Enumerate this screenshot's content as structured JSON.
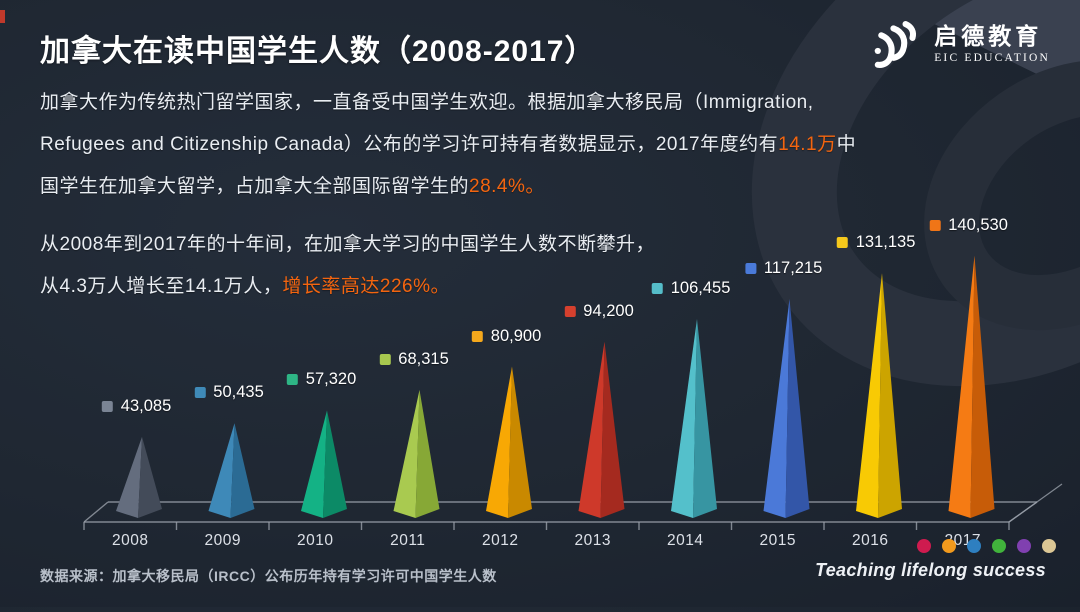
{
  "header": {
    "title": "加拿大在读中国学生人数（2008-2017）",
    "logo": {
      "cn": "启德教育",
      "en": "EIC EDUCATION"
    }
  },
  "intro": {
    "p1": [
      {
        "t": "加拿大作为传统热门留学国家，一直备受中国学生欢迎。根据加拿大移民局（Immigration,"
      },
      {
        "br": true
      },
      {
        "t": "Refugees and Citizenship Canada）公布的学习许可持有者数据显示，2017年度约有"
      },
      {
        "t": "14.1万",
        "hl": true
      },
      {
        "t": "中"
      },
      {
        "br": true
      },
      {
        "t": "国学生在加拿大留学，占加拿大全部国际留学生的"
      },
      {
        "t": "28.4%。",
        "hl": true
      }
    ],
    "p2": [
      {
        "t": "从2008年到2017年的十年间，在加拿大学习的中国学生人数不断攀升，"
      },
      {
        "br": true
      },
      {
        "t": "从4.3万人增长至14.1万人，"
      },
      {
        "t": "增长率高达226%。",
        "hl": true
      }
    ]
  },
  "chart_data": {
    "type": "bar",
    "subtype": "3d-cone",
    "title": "加拿大在读中国学生人数（2008-2017）",
    "xlabel": "",
    "ylabel": "",
    "grid": false,
    "legend_position": "none",
    "categories": [
      "2008",
      "2009",
      "2010",
      "2011",
      "2012",
      "2013",
      "2014",
      "2015",
      "2016",
      "2017"
    ],
    "values": [
      43085,
      50435,
      57320,
      68315,
      80900,
      94200,
      106455,
      117215,
      131135,
      140530
    ],
    "value_labels": [
      "43,085",
      "50,435",
      "57,320",
      "68,315",
      "80,900",
      "94,200",
      "106,455",
      "117,215",
      "131,135",
      "140,530"
    ],
    "colors": [
      {
        "light": "#646d7e",
        "dark": "#434b59",
        "marker": "#7a8494"
      },
      {
        "light": "#3e89b8",
        "dark": "#2b6b94",
        "marker": "#3f8ab8"
      },
      {
        "light": "#14b285",
        "dark": "#0c8a66",
        "marker": "#2eb585"
      },
      {
        "light": "#a9ca50",
        "dark": "#87a836",
        "marker": "#a8c84f"
      },
      {
        "light": "#f8a804",
        "dark": "#c98900",
        "marker": "#f5a81c"
      },
      {
        "light": "#ce392a",
        "dark": "#a52a1f",
        "marker": "#d6402e"
      },
      {
        "light": "#54c0cb",
        "dark": "#3795a2",
        "marker": "#55bdc9"
      },
      {
        "light": "#4b79d8",
        "dark": "#3356a8",
        "marker": "#4a7ad9"
      },
      {
        "light": "#f8ca04",
        "dark": "#cca400",
        "marker": "#f5c81c"
      },
      {
        "light": "#f57b14",
        "dark": "#c75c08",
        "marker": "#f07517"
      }
    ],
    "axis_color": "#9aa0aa"
  },
  "footer": {
    "source": "数据来源：加拿大移民局（IRCC）公布历年持有学习许可中国学生人数",
    "slogan": "Teaching lifelong success",
    "dots": [
      "#cf1b4f",
      "#f29a1d",
      "#2e7fc0",
      "#41b33c",
      "#8040b0",
      "#dcc795"
    ]
  }
}
